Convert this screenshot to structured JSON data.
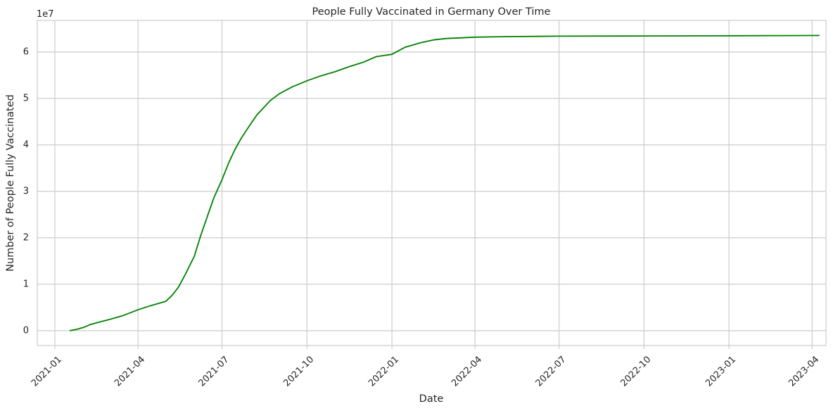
{
  "chart_data": {
    "type": "line",
    "title": "People Fully Vaccinated in Germany Over Time",
    "xlabel": "Date",
    "ylabel": "Number of People Fully Vaccinated",
    "y_offset_label": "1e7",
    "x_tick_labels": [
      "2021-01",
      "2021-04",
      "2021-07",
      "2021-10",
      "2022-01",
      "2022-04",
      "2022-07",
      "2022-10",
      "2023-01",
      "2023-04"
    ],
    "x_ticks": [
      "2021-01-01",
      "2021-04-01",
      "2021-07-01",
      "2021-10-01",
      "2022-01-01",
      "2022-04-01",
      "2022-07-01",
      "2022-10-01",
      "2023-01-01",
      "2023-04-01"
    ],
    "y_tick_labels": [
      "0",
      "1",
      "2",
      "3",
      "4",
      "5",
      "6"
    ],
    "y_ticks": [
      0,
      10000000,
      20000000,
      30000000,
      40000000,
      50000000,
      60000000
    ],
    "xlim": [
      "2020-12-13",
      "2023-04-16"
    ],
    "ylim": [
      -3200000,
      66800000
    ],
    "grid": true,
    "series": [
      {
        "color": "#008000",
        "x": [
          "2021-01-17",
          "2021-01-25",
          "2021-02-01",
          "2021-02-08",
          "2021-02-15",
          "2021-03-01",
          "2021-03-15",
          "2021-04-01",
          "2021-04-15",
          "2021-05-01",
          "2021-05-08",
          "2021-05-15",
          "2021-05-22",
          "2021-06-01",
          "2021-06-08",
          "2021-06-15",
          "2021-06-22",
          "2021-07-01",
          "2021-07-08",
          "2021-07-15",
          "2021-07-22",
          "2021-08-01",
          "2021-08-08",
          "2021-08-15",
          "2021-08-22",
          "2021-09-01",
          "2021-09-15",
          "2021-10-01",
          "2021-10-15",
          "2021-11-01",
          "2021-11-15",
          "2021-12-01",
          "2021-12-15",
          "2022-01-01",
          "2022-01-15",
          "2022-02-01",
          "2022-02-15",
          "2022-03-01",
          "2022-04-01",
          "2022-05-01",
          "2022-07-01",
          "2022-10-01",
          "2023-01-01",
          "2023-04-09"
        ],
        "y": [
          0,
          300000,
          700000,
          1300000,
          1700000,
          2400000,
          3200000,
          4500000,
          5400000,
          6300000,
          7600000,
          9400000,
          12000000,
          16000000,
          20500000,
          24500000,
          28500000,
          32500000,
          36000000,
          39000000,
          41500000,
          44500000,
          46500000,
          48000000,
          49500000,
          51000000,
          52500000,
          53800000,
          54800000,
          55800000,
          56800000,
          57800000,
          59000000,
          59500000,
          61000000,
          62000000,
          62600000,
          62900000,
          63200000,
          63300000,
          63400000,
          63450000,
          63500000,
          63550000
        ]
      }
    ]
  }
}
